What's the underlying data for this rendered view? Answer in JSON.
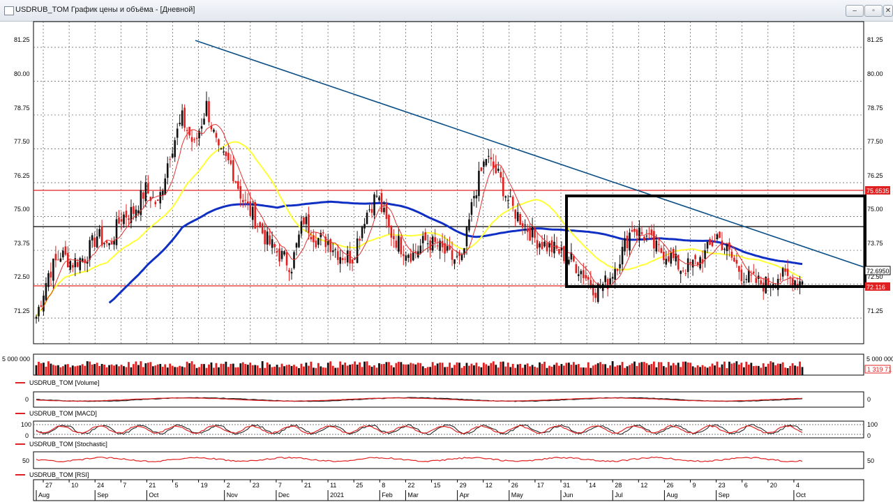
{
  "window": {
    "title": "USDRUB_TOM График цены и объёма - [Дневной]",
    "btn_min": "–",
    "btn_max": "▫",
    "btn_close": "✕"
  },
  "price_axis": {
    "ticks": [
      "81.25",
      "80.00",
      "78.75",
      "77.50",
      "76.25",
      "75.00",
      "73.75",
      "72.50",
      "71.25"
    ],
    "markers": [
      "75.6535",
      "72.6950",
      "72.116"
    ]
  },
  "volume_panel": {
    "label": "USDRUB_TOM [Volume]",
    "tick_left": "5 000 000",
    "tick_right": "5 000 000",
    "last": "1 319 71"
  },
  "macd_panel": {
    "label": "USDRUB_TOM [MACD]",
    "tick_left": "0",
    "tick_right": "0"
  },
  "stoch_panel": {
    "label": "USDRUB_TOM [Stochastic]",
    "ticks_left": [
      "100",
      "0"
    ],
    "ticks_right": [
      "100",
      "0"
    ]
  },
  "rsi_panel": {
    "label": "USDRUB_TOM [RSI]",
    "tick_left": "50",
    "tick_right": "50"
  },
  "time_axis": {
    "days": [
      "27",
      "10",
      "24",
      "7",
      "21",
      "5",
      "19",
      "2",
      "23",
      "7",
      "21",
      "11",
      "25",
      "8",
      "22",
      "15",
      "29",
      "12",
      "26",
      "17",
      "31",
      "14",
      "28",
      "12",
      "26",
      "9",
      "23",
      "6",
      "20",
      "4"
    ],
    "months": [
      "Aug",
      "Sep",
      "Oct",
      "Nov",
      "Dec",
      "2021",
      "Feb",
      "Mar",
      "Apr",
      "May",
      "Jun",
      "Jul",
      "Aug",
      "Sep",
      "Oct"
    ]
  },
  "colors": {
    "up": "#111111",
    "down": "#e11f1f",
    "ma_short": "#e63030",
    "ma_mid": "#ffff33",
    "ma_long": "#0f2fc4",
    "trendline": "#0b4f86",
    "level": "#e02020"
  },
  "chart_data": {
    "type": "candlestick",
    "title": "USDRUB_TOM",
    "ylim": [
      70.3,
      82.2
    ],
    "levels": [
      75.6535,
      72.116,
      74.32
    ],
    "last_close": 72.695,
    "trendline": [
      {
        "date": "2020-10-30",
        "value": 81.15
      },
      {
        "date": "2021-10-13",
        "value": 72.85
      }
    ],
    "box": {
      "from": "2021-05-15",
      "to": "2021-10-04",
      "low": 72.15,
      "high": 75.5
    },
    "series": [
      {
        "name": "USDRUB_TOM",
        "points": [
          [
            "2020-07-20",
            71.3
          ],
          [
            "2020-07-27",
            72.9
          ],
          [
            "2020-08-03",
            73.6
          ],
          [
            "2020-08-10",
            73.3
          ],
          [
            "2020-08-17",
            73.5
          ],
          [
            "2020-08-24",
            74.3
          ],
          [
            "2020-08-31",
            73.9
          ],
          [
            "2020-09-07",
            75.0
          ],
          [
            "2020-09-14",
            75.2
          ],
          [
            "2020-09-21",
            76.0
          ],
          [
            "2020-09-28",
            75.4
          ],
          [
            "2020-10-05",
            77.4
          ],
          [
            "2020-10-12",
            78.6
          ],
          [
            "2020-10-19",
            77.6
          ],
          [
            "2020-10-26",
            79.1
          ],
          [
            "2020-11-02",
            77.3
          ],
          [
            "2020-11-09",
            76.9
          ],
          [
            "2020-11-16",
            75.6
          ],
          [
            "2020-11-23",
            74.9
          ],
          [
            "2020-11-30",
            74.1
          ],
          [
            "2020-12-07",
            73.6
          ],
          [
            "2020-12-14",
            73.2
          ],
          [
            "2020-12-21",
            74.9
          ],
          [
            "2020-12-28",
            74.2
          ],
          [
            "2021-01-04",
            74.1
          ],
          [
            "2021-01-11",
            73.6
          ],
          [
            "2021-01-18",
            73.5
          ],
          [
            "2021-01-25",
            75.0
          ],
          [
            "2021-02-01",
            75.8
          ],
          [
            "2021-02-08",
            74.5
          ],
          [
            "2021-02-15",
            73.9
          ],
          [
            "2021-02-22",
            73.6
          ],
          [
            "2021-03-01",
            74.1
          ],
          [
            "2021-03-08",
            73.9
          ],
          [
            "2021-03-15",
            73.5
          ],
          [
            "2021-03-22",
            73.3
          ],
          [
            "2021-03-29",
            75.8
          ],
          [
            "2021-04-05",
            77.2
          ],
          [
            "2021-04-12",
            76.5
          ],
          [
            "2021-04-19",
            75.4
          ],
          [
            "2021-04-26",
            74.8
          ],
          [
            "2021-05-03",
            74.2
          ],
          [
            "2021-05-10",
            73.9
          ],
          [
            "2021-05-17",
            73.7
          ],
          [
            "2021-05-24",
            73.4
          ],
          [
            "2021-05-31",
            72.9
          ],
          [
            "2021-06-07",
            72.3
          ],
          [
            "2021-06-14",
            72.6
          ],
          [
            "2021-06-21",
            73.5
          ],
          [
            "2021-06-28",
            74.6
          ],
          [
            "2021-07-05",
            74.3
          ],
          [
            "2021-07-12",
            73.8
          ],
          [
            "2021-07-19",
            73.6
          ],
          [
            "2021-07-26",
            73.1
          ],
          [
            "2021-08-02",
            73.2
          ],
          [
            "2021-08-09",
            73.6
          ],
          [
            "2021-08-16",
            74.3
          ],
          [
            "2021-08-23",
            73.6
          ],
          [
            "2021-08-30",
            72.9
          ],
          [
            "2021-09-06",
            72.6
          ],
          [
            "2021-09-13",
            72.5
          ],
          [
            "2021-09-20",
            72.8
          ],
          [
            "2021-09-27",
            72.7
          ],
          [
            "2021-10-04",
            72.6
          ]
        ]
      }
    ]
  }
}
